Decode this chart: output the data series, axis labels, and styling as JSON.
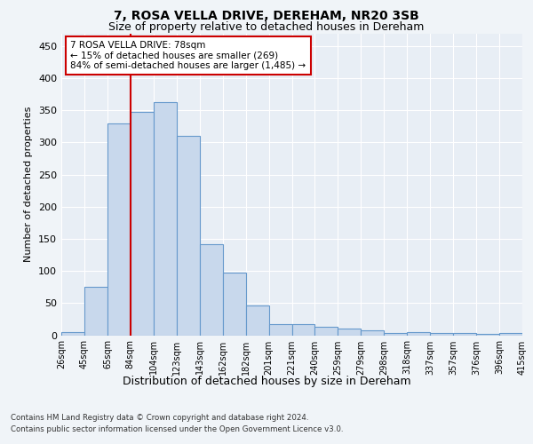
{
  "title1": "7, ROSA VELLA DRIVE, DEREHAM, NR20 3SB",
  "title2": "Size of property relative to detached houses in Dereham",
  "xlabel": "Distribution of detached houses by size in Dereham",
  "ylabel": "Number of detached properties",
  "bar_values": [
    5,
    75,
    330,
    348,
    363,
    310,
    142,
    98,
    46,
    17,
    17,
    13,
    11,
    8,
    4,
    5,
    4,
    4,
    2,
    3
  ],
  "bar_labels": [
    "26sqm",
    "45sqm",
    "65sqm",
    "84sqm",
    "104sqm",
    "123sqm",
    "143sqm",
    "162sqm",
    "182sqm",
    "201sqm",
    "221sqm",
    "240sqm",
    "259sqm",
    "279sqm",
    "298sqm",
    "318sqm",
    "337sqm",
    "357sqm",
    "376sqm",
    "396sqm",
    "415sqm"
  ],
  "bar_color": "#c8d8ec",
  "bar_edge_color": "#6699cc",
  "vline_color": "#cc0000",
  "vline_pos": 3,
  "annotation_text": "7 ROSA VELLA DRIVE: 78sqm\n← 15% of detached houses are smaller (269)\n84% of semi-detached houses are larger (1,485) →",
  "annotation_box_color": "#ffffff",
  "annotation_box_edge": "#cc0000",
  "ylim": [
    0,
    470
  ],
  "yticks": [
    0,
    50,
    100,
    150,
    200,
    250,
    300,
    350,
    400,
    450
  ],
  "footer1": "Contains HM Land Registry data © Crown copyright and database right 2024.",
  "footer2": "Contains public sector information licensed under the Open Government Licence v3.0.",
  "fig_bg_color": "#f0f4f8",
  "plot_bg_color": "#e8eef5"
}
